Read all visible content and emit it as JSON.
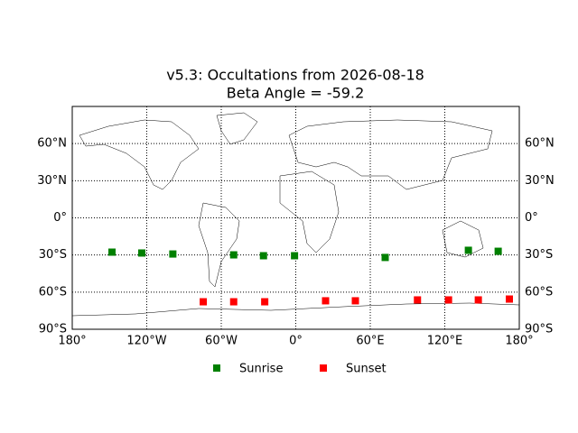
{
  "chart_data": {
    "type": "scatter",
    "title": "v5.3: Occultations from 2026-08-18",
    "subtitle": "Beta Angle = -59.2",
    "xlim": [
      -180,
      180
    ],
    "ylim": [
      -90,
      90
    ],
    "xticks": [
      {
        "value": -180,
        "label": "180°"
      },
      {
        "value": -120,
        "label": "120°W"
      },
      {
        "value": -60,
        "label": "60°W"
      },
      {
        "value": 0,
        "label": "0°"
      },
      {
        "value": 60,
        "label": "60°E"
      },
      {
        "value": 120,
        "label": "120°E"
      },
      {
        "value": 180,
        "label": "180°"
      }
    ],
    "yticks": [
      {
        "value": -90,
        "label": "90°S"
      },
      {
        "value": -60,
        "label": "60°S"
      },
      {
        "value": -30,
        "label": "30°S"
      },
      {
        "value": 0,
        "label": "0°"
      },
      {
        "value": 30,
        "label": "30°N"
      },
      {
        "value": 60,
        "label": "60°N"
      }
    ],
    "grid": true,
    "series": [
      {
        "name": "Sunrise",
        "color": "#008000",
        "x": [
          -148,
          -124,
          -99,
          -50,
          -26,
          -1,
          72,
          139,
          163
        ],
        "y": [
          -27.7,
          -28.4,
          -29.2,
          -29.9,
          -30.6,
          -30.6,
          -32,
          -26.2,
          -27
        ]
      },
      {
        "name": "Sunset",
        "color": "#ff0000",
        "x": [
          -74.5,
          -50,
          -25,
          24,
          48,
          98,
          123,
          147,
          172
        ],
        "y": [
          -67.8,
          -67.8,
          -67.8,
          -67,
          -67,
          -66.3,
          -66.3,
          -66.3,
          -65.6
        ]
      }
    ]
  }
}
